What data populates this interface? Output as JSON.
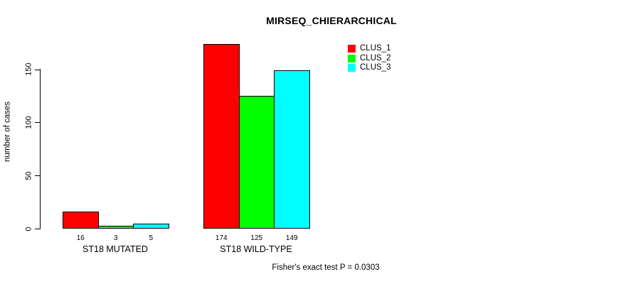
{
  "chart_data": {
    "type": "bar",
    "title": "MIRSEQ_CHIERARCHICAL",
    "ylabel": "number of cases",
    "xlabel": "",
    "categories": [
      "ST18 MUTATED",
      "ST18 WILD-TYPE"
    ],
    "series": [
      {
        "name": "CLUS_1",
        "color": "#ff0000",
        "values": [
          16,
          174
        ]
      },
      {
        "name": "CLUS_2",
        "color": "#00ff00",
        "values": [
          3,
          125
        ]
      },
      {
        "name": "CLUS_3",
        "color": "#00ffff",
        "values": [
          5,
          149
        ]
      }
    ],
    "yticks": [
      0,
      50,
      100,
      150
    ],
    "ylim": [
      0,
      180
    ],
    "grid": false,
    "legend_position": "top-right",
    "bar_value_labels_shown": true,
    "bar_border_color": "#000000",
    "annotation": "Fisher's exact test P = 0.0303"
  }
}
